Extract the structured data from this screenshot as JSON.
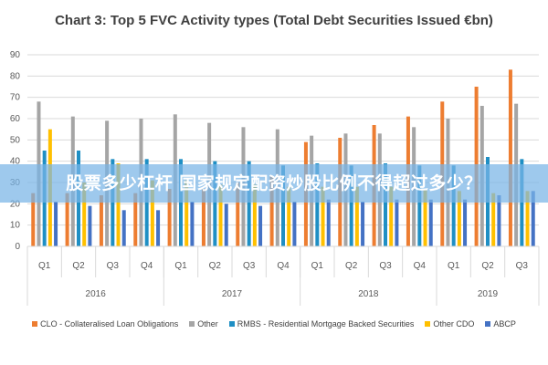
{
  "chart_data": {
    "type": "bar",
    "title": "Chart 3: Top 5 FVC Activity types (Total Debt Securities Issued €bn)",
    "xlabel": "",
    "ylabel": "",
    "ylim": [
      0,
      90
    ],
    "yticks": [
      0,
      10,
      20,
      30,
      40,
      50,
      60,
      70,
      80,
      90
    ],
    "grid": true,
    "legend_position": "bottom",
    "categories": [
      "Q1",
      "Q2",
      "Q3",
      "Q4",
      "Q1",
      "Q2",
      "Q3",
      "Q4",
      "Q1",
      "Q2",
      "Q3",
      "Q4",
      "Q1",
      "Q2",
      "Q3"
    ],
    "groups": [
      {
        "label": "2016",
        "count": 4
      },
      {
        "label": "2017",
        "count": 4
      },
      {
        "label": "2018",
        "count": 4
      },
      {
        "label": "2019",
        "count": 3
      }
    ],
    "series": [
      {
        "name": "CLO - Collateralised Loan Obligations",
        "color": "#ED7D31",
        "values": [
          25,
          25,
          24,
          25,
          27,
          27,
          30,
          33,
          49,
          51,
          57,
          61,
          68,
          75,
          83
        ]
      },
      {
        "name": "Other",
        "color": "#A5A5A5",
        "values": [
          68,
          61,
          59,
          60,
          62,
          58,
          56,
          55,
          52,
          53,
          53,
          56,
          60,
          66,
          67
        ]
      },
      {
        "name": "RMBS - Residential Mortgage Backed Securities",
        "color": "#1F8FC4",
        "values": [
          45,
          45,
          41,
          41,
          41,
          40,
          40,
          38,
          39,
          38,
          39,
          38,
          38,
          42,
          41
        ]
      },
      {
        "name": "Other CDO",
        "color": "#FFC000",
        "values": [
          55,
          30,
          39,
          31,
          31,
          29,
          29,
          28,
          28,
          28,
          28,
          27,
          26,
          25,
          26
        ]
      },
      {
        "name": "ABCP",
        "color": "#4472C4",
        "values": [
          21,
          19,
          17,
          17,
          21,
          20,
          19,
          21,
          22,
          21,
          22,
          22,
          22,
          24,
          26
        ]
      }
    ]
  },
  "overlay_banner": {
    "text": "股票多少杠杆 国家规定配资炒股比例不得超过多少？"
  }
}
